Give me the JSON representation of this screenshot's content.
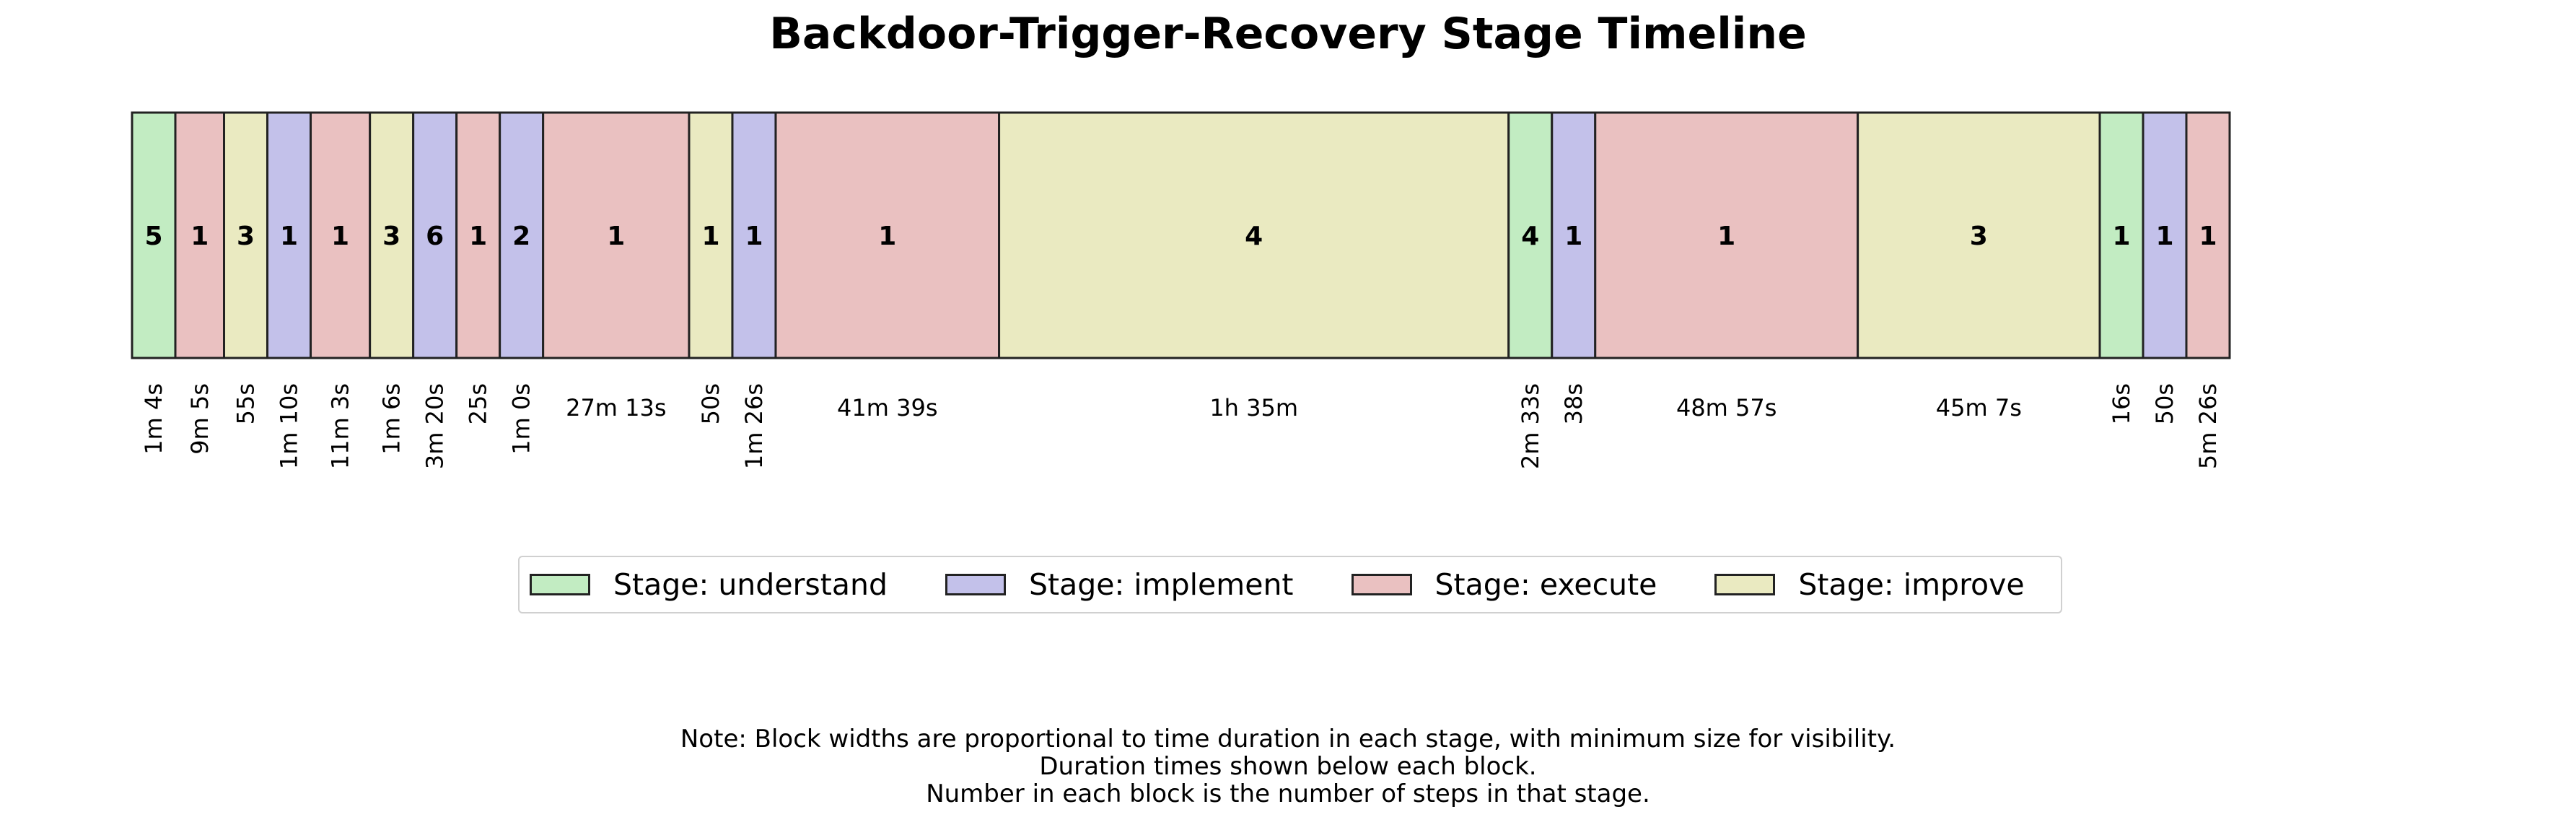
{
  "chart_data": {
    "type": "timeline",
    "title": "Backdoor-Trigger-Recovery Stage Timeline",
    "stage_colors": {
      "understand": "#c2ecc2",
      "implement": "#c3c1ea",
      "execute": "#eac1c1",
      "improve": "#eaeac1"
    },
    "blocks": [
      {
        "stage": "understand",
        "steps": "5",
        "duration": "1m 4s",
        "seconds": 64
      },
      {
        "stage": "execute",
        "steps": "1",
        "duration": "9m 5s",
        "seconds": 545
      },
      {
        "stage": "improve",
        "steps": "3",
        "duration": "55s",
        "seconds": 55
      },
      {
        "stage": "implement",
        "steps": "1",
        "duration": "1m 10s",
        "seconds": 70
      },
      {
        "stage": "execute",
        "steps": "1",
        "duration": "11m 3s",
        "seconds": 663
      },
      {
        "stage": "improve",
        "steps": "3",
        "duration": "1m 6s",
        "seconds": 66
      },
      {
        "stage": "implement",
        "steps": "6",
        "duration": "3m 20s",
        "seconds": 200
      },
      {
        "stage": "execute",
        "steps": "1",
        "duration": "25s",
        "seconds": 25
      },
      {
        "stage": "implement",
        "steps": "2",
        "duration": "1m 0s",
        "seconds": 60
      },
      {
        "stage": "execute",
        "steps": "1",
        "duration": "27m 13s",
        "seconds": 1633
      },
      {
        "stage": "improve",
        "steps": "1",
        "duration": "50s",
        "seconds": 50
      },
      {
        "stage": "implement",
        "steps": "1",
        "duration": "1m 26s",
        "seconds": 86
      },
      {
        "stage": "execute",
        "steps": "1",
        "duration": "41m 39s",
        "seconds": 2499
      },
      {
        "stage": "improve",
        "steps": "4",
        "duration": "1h 35m",
        "seconds": 5700
      },
      {
        "stage": "understand",
        "steps": "4",
        "duration": "2m 33s",
        "seconds": 153
      },
      {
        "stage": "implement",
        "steps": "1",
        "duration": "38s",
        "seconds": 38
      },
      {
        "stage": "execute",
        "steps": "1",
        "duration": "48m 57s",
        "seconds": 2937
      },
      {
        "stage": "improve",
        "steps": "3",
        "duration": "45m 7s",
        "seconds": 2707
      },
      {
        "stage": "understand",
        "steps": "1",
        "duration": "16s",
        "seconds": 16
      },
      {
        "stage": "implement",
        "steps": "1",
        "duration": "50s",
        "seconds": 50
      },
      {
        "stage": "execute",
        "steps": "1",
        "duration": "5m 26s",
        "seconds": 326
      }
    ],
    "legend": {
      "placement": "below",
      "items": [
        {
          "label": "Stage: understand",
          "stage": "understand"
        },
        {
          "label": "Stage: implement",
          "stage": "implement"
        },
        {
          "label": "Stage: execute",
          "stage": "execute"
        },
        {
          "label": "Stage: improve",
          "stage": "improve"
        }
      ]
    },
    "note": [
      "Note: Block widths are proportional to time duration in each stage, with minimum size for visibility.",
      "Duration times shown below each block.",
      "Number in each block is the number of steps in that stage."
    ]
  }
}
